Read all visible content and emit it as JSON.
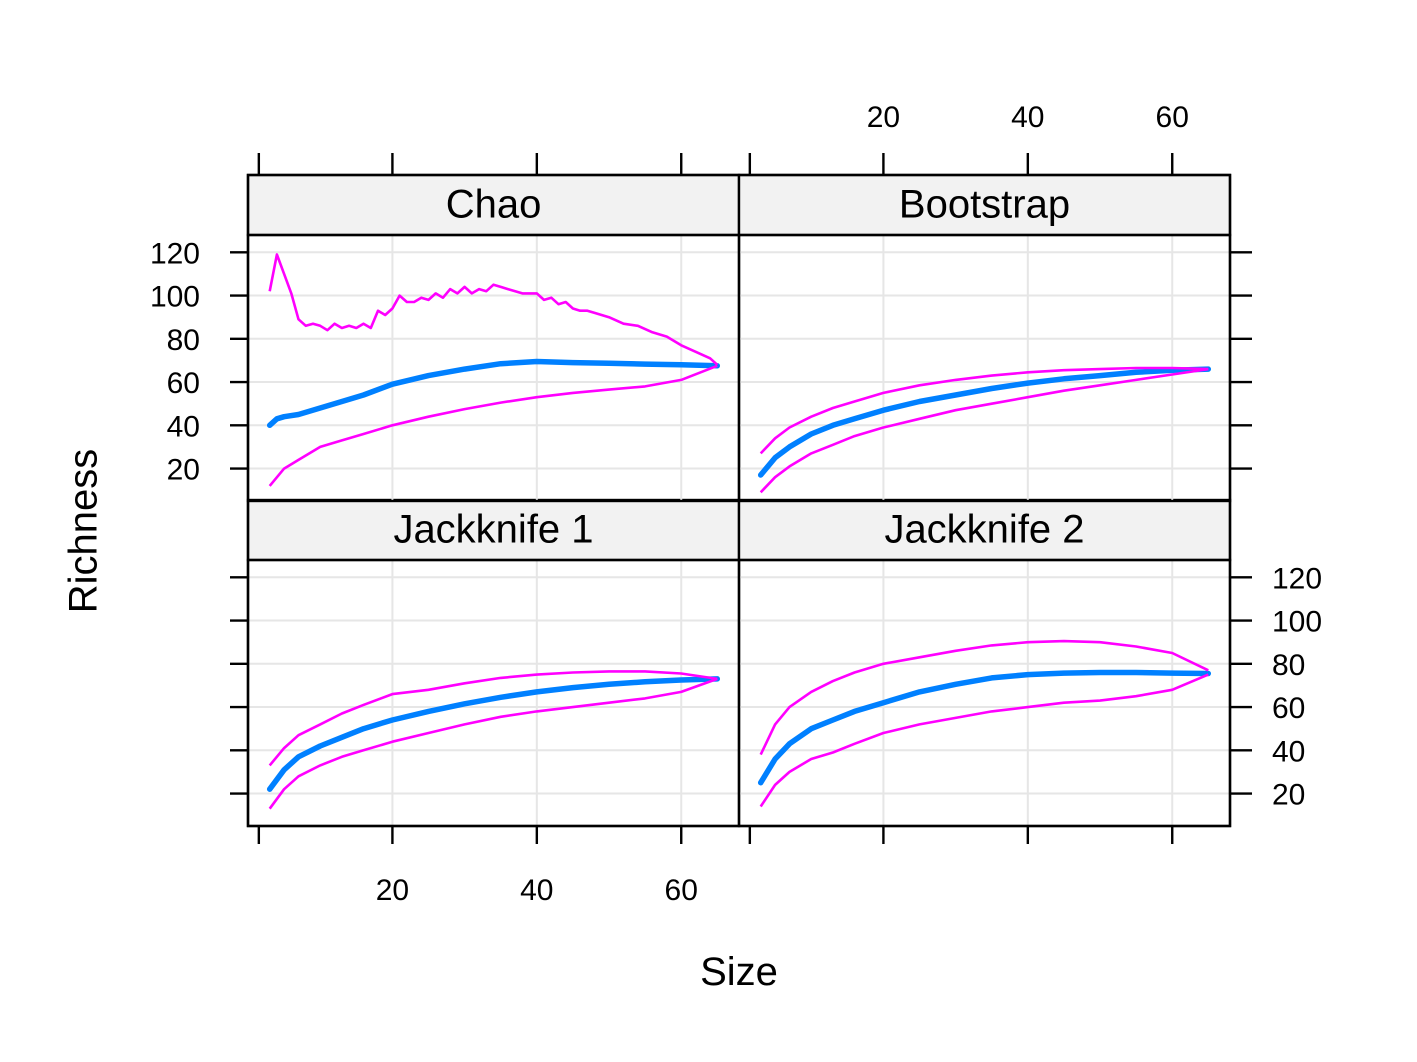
{
  "chart_data": {
    "type": "line",
    "xlabel": "Size",
    "ylabel": "Richness",
    "xlim": [
      0,
      68
    ],
    "ylim": [
      5,
      128
    ],
    "x_ticks": [
      20,
      40,
      60
    ],
    "y_ticks": [
      20,
      40,
      60,
      80,
      100,
      120
    ],
    "grid": true,
    "colors": {
      "estimate": "#0080ff",
      "bounds": "#ff00ff",
      "strip": "#f2f2f2",
      "grid": "#e6e6e6"
    },
    "panels": [
      {
        "title": "Jackknife 1",
        "series": [
          {
            "role": "estimate",
            "x": [
              3,
              5,
              7,
              10,
              13,
              16,
              20,
              25,
              30,
              35,
              40,
              45,
              50,
              55,
              60,
              65
            ],
            "y": [
              22,
              31,
              37,
              42,
              46,
              50,
              54,
              58,
              61.5,
              64.5,
              67,
              69,
              70.5,
              71.7,
              72.5,
              73
            ]
          },
          {
            "role": "upper",
            "x": [
              3,
              5,
              7,
              10,
              13,
              16,
              20,
              25,
              30,
              35,
              40,
              45,
              50,
              55,
              60,
              65
            ],
            "y": [
              33,
              41,
              47,
              52,
              57,
              61,
              66,
              68,
              71,
              73.5,
              75,
              76,
              76.5,
              76.5,
              75.5,
              73
            ]
          },
          {
            "role": "lower",
            "x": [
              3,
              5,
              7,
              10,
              13,
              16,
              20,
              25,
              30,
              35,
              40,
              45,
              50,
              55,
              60,
              65
            ],
            "y": [
              13,
              22,
              28,
              33,
              37,
              40,
              44,
              48,
              52,
              55.5,
              58,
              60,
              62,
              64,
              67,
              73
            ]
          }
        ]
      },
      {
        "title": "Jackknife 2",
        "series": [
          {
            "role": "estimate",
            "x": [
              3,
              5,
              7,
              10,
              13,
              16,
              20,
              25,
              30,
              35,
              40,
              45,
              50,
              55,
              60,
              65
            ],
            "y": [
              25,
              36,
              43,
              50,
              54,
              58,
              62,
              67,
              70.5,
              73.5,
              75,
              75.7,
              76,
              76,
              75.7,
              75.5
            ]
          },
          {
            "role": "upper",
            "x": [
              3,
              5,
              7,
              10,
              13,
              16,
              20,
              25,
              30,
              35,
              40,
              45,
              50,
              55,
              60,
              65
            ],
            "y": [
              38,
              52,
              60,
              67,
              72,
              76,
              80,
              83,
              86,
              88.5,
              90,
              90.5,
              90,
              88,
              85,
              77
            ]
          },
          {
            "role": "lower",
            "x": [
              3,
              5,
              7,
              10,
              13,
              16,
              20,
              25,
              30,
              35,
              40,
              45,
              50,
              55,
              60,
              65
            ],
            "y": [
              14,
              24,
              30,
              36,
              39,
              43,
              48,
              52,
              55,
              58,
              60,
              62,
              63,
              65,
              68,
              75
            ]
          }
        ]
      },
      {
        "title": "Chao",
        "series": [
          {
            "role": "estimate",
            "x": [
              3,
              4,
              5,
              7,
              10,
              13,
              16,
              20,
              25,
              30,
              35,
              40,
              45,
              50,
              55,
              60,
              65
            ],
            "y": [
              40,
              43,
              44,
              45,
              48,
              51,
              54,
              59,
              63,
              66,
              68.5,
              69.5,
              69,
              68.7,
              68.3,
              68,
              67.5
            ]
          },
          {
            "role": "upper",
            "x": [
              3,
              4,
              5,
              6,
              7,
              8,
              9,
              10,
              11,
              12,
              13,
              14,
              15,
              16,
              17,
              18,
              19,
              20,
              21,
              22,
              23,
              24,
              25,
              26,
              27,
              28,
              29,
              30,
              31,
              32,
              33,
              34,
              35,
              36,
              37,
              38,
              39,
              40,
              41,
              42,
              43,
              44,
              45,
              46,
              47,
              48,
              50,
              52,
              54,
              56,
              58,
              60,
              62,
              64,
              65
            ],
            "y": [
              102,
              119,
              110,
              101,
              89,
              86,
              87,
              86,
              84,
              87,
              85,
              86,
              85,
              87,
              85,
              93,
              91,
              94,
              100,
              97,
              97,
              99,
              98,
              101,
              99,
              103,
              101,
              104,
              101,
              103,
              102,
              105,
              104,
              103,
              102,
              101,
              101,
              101,
              98,
              99,
              96,
              97,
              94,
              93,
              93,
              92,
              90,
              87,
              86,
              83,
              81,
              77,
              74,
              71,
              68
            ]
          },
          {
            "role": "lower",
            "x": [
              3,
              5,
              7,
              10,
              13,
              16,
              20,
              25,
              30,
              35,
              40,
              45,
              50,
              55,
              60,
              65
            ],
            "y": [
              12,
              20,
              24,
              30,
              33,
              36,
              40,
              44,
              47.5,
              50.5,
              53,
              55,
              56.5,
              58,
              61,
              67.5
            ]
          }
        ]
      },
      {
        "title": "Bootstrap",
        "series": [
          {
            "role": "estimate",
            "x": [
              3,
              5,
              7,
              10,
              13,
              16,
              20,
              25,
              30,
              35,
              40,
              45,
              50,
              55,
              60,
              65
            ],
            "y": [
              17,
              25,
              30,
              36,
              40,
              43,
              47,
              51,
              54,
              57,
              59.5,
              61.5,
              63,
              64.5,
              65.5,
              66
            ]
          },
          {
            "role": "upper",
            "x": [
              3,
              5,
              7,
              10,
              13,
              16,
              20,
              25,
              30,
              35,
              40,
              45,
              50,
              55,
              60,
              65
            ],
            "y": [
              27,
              34,
              39,
              44,
              48,
              51,
              55,
              58.5,
              61,
              63,
              64.5,
              65.5,
              66,
              66.5,
              66.5,
              66
            ]
          },
          {
            "role": "lower",
            "x": [
              3,
              5,
              7,
              10,
              13,
              16,
              20,
              25,
              30,
              35,
              40,
              45,
              50,
              55,
              60,
              65
            ],
            "y": [
              9,
              16,
              21,
              27,
              31,
              35,
              39,
              43,
              47,
              50,
              53,
              56,
              58.5,
              61,
              63.5,
              66
            ]
          }
        ]
      }
    ]
  }
}
